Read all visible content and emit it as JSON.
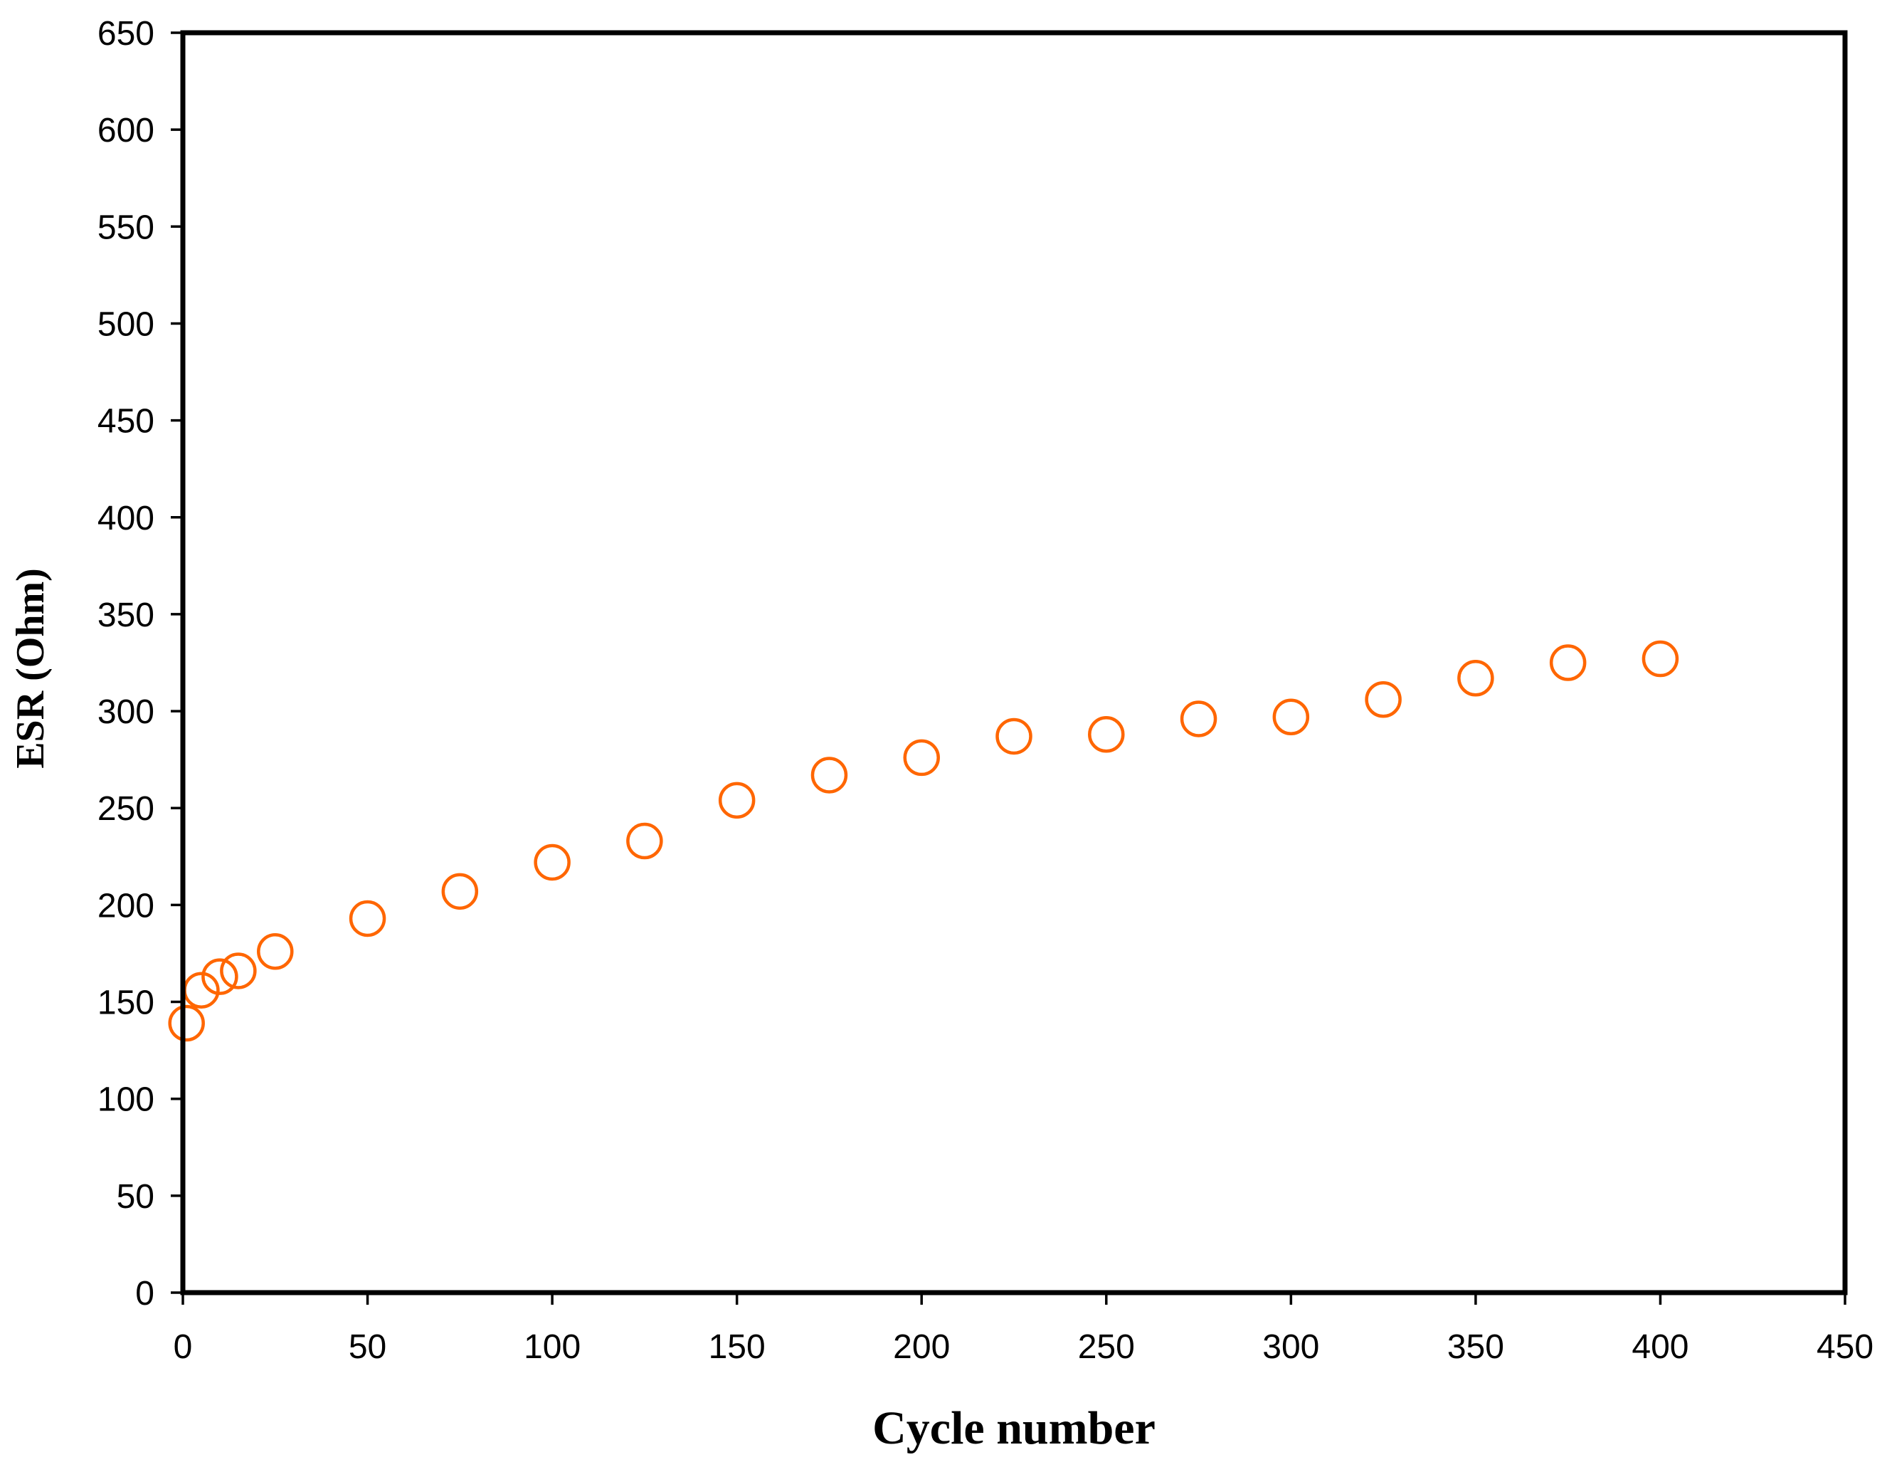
{
  "chart_data": {
    "type": "scatter",
    "title": "",
    "xlabel": "Cycle number",
    "ylabel": "ESR (Ohm)",
    "series": [
      {
        "name": "ESR",
        "x": [
          1,
          5,
          10,
          15,
          25,
          50,
          75,
          100,
          125,
          150,
          175,
          200,
          225,
          250,
          275,
          300,
          325,
          350,
          375,
          400
        ],
        "y": [
          139,
          156,
          163,
          166,
          176,
          193,
          207,
          222,
          233,
          254,
          267,
          276,
          287,
          288,
          296,
          297,
          306,
          317,
          325,
          327
        ]
      }
    ],
    "xlim": [
      0,
      450
    ],
    "ylim": [
      0,
      650
    ],
    "x_ticks": [
      0,
      50,
      100,
      150,
      200,
      250,
      300,
      350,
      400,
      450
    ],
    "y_ticks": [
      0,
      50,
      100,
      150,
      200,
      250,
      300,
      350,
      400,
      450,
      500,
      550,
      600,
      650
    ],
    "grid": false,
    "legend_position": "none",
    "marker": {
      "shape": "open-circle",
      "color": "#FF6600",
      "fill": "none"
    },
    "axis_color": "#000000",
    "background_color": "#FFFFFF"
  }
}
